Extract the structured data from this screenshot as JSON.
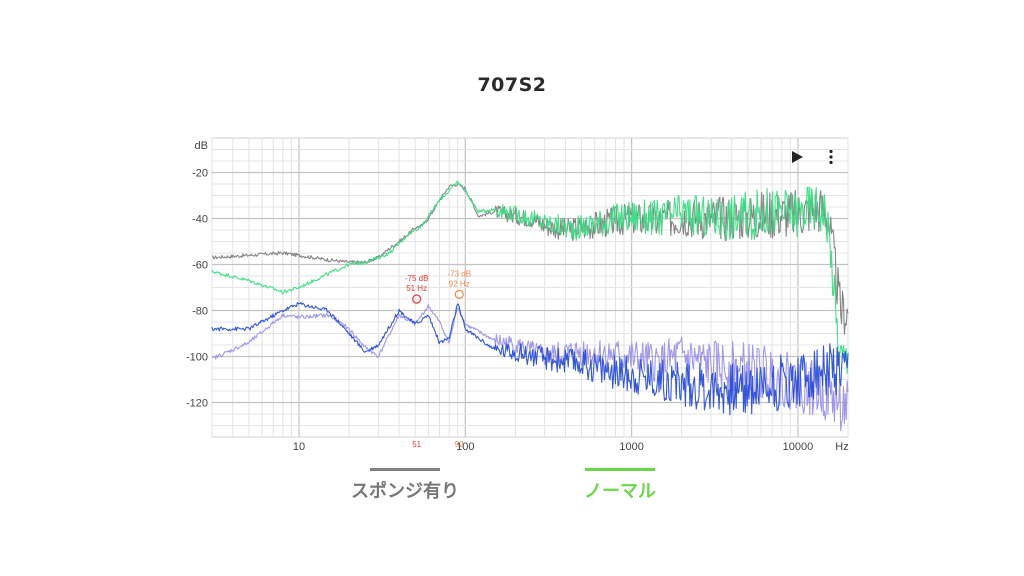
{
  "page": {
    "title": "707S2"
  },
  "chart_data": {
    "type": "line",
    "title": "707S2",
    "xscale": "log",
    "xunit": "Hz",
    "yunit": "dB",
    "xlim": [
      3,
      20000
    ],
    "ylim": [
      -135,
      -5
    ],
    "grid": true,
    "x_ticks": [
      10,
      100,
      1000,
      10000
    ],
    "x_tick_labels": [
      "10",
      "100",
      "1000",
      "10000"
    ],
    "y_ticks": [
      -20,
      -40,
      -60,
      -80,
      -100,
      -120
    ],
    "y_tick_labels": [
      "-20",
      "-40",
      "-60",
      "-80",
      "-100",
      "-120"
    ],
    "colors": {
      "sponge": "#808080",
      "normal": "#3ddc84",
      "noise_a": "#2b4fd4",
      "noise_b": "#9b93e8",
      "marker_a": "#e53935",
      "marker_b": "#ef8a4a",
      "legend_normal_text": "#6cd64a"
    },
    "legend": [
      {
        "name": "スポンジ有り",
        "color": "#808080",
        "text_color": "#777777"
      },
      {
        "name": "ノーマル",
        "color": "#6cd64a",
        "text_color": "#6cd64a"
      }
    ],
    "markers": [
      {
        "x": 51,
        "y": -75,
        "label_db": "-75 dB",
        "label_hz": "51 Hz",
        "axis_label": "51",
        "color": "#e53935"
      },
      {
        "x": 92,
        "y": -73,
        "label_db": "-73 dB",
        "label_hz": "92 Hz",
        "axis_label": "92",
        "color": "#ef8a4a"
      }
    ],
    "series": [
      {
        "key": "sponge",
        "x": [
          3,
          5,
          8,
          10,
          15,
          20,
          25,
          30,
          35,
          40,
          45,
          50,
          55,
          60,
          70,
          80,
          90,
          100,
          110,
          120,
          150,
          200,
          250,
          300,
          400,
          500,
          700,
          1000,
          1500,
          2000,
          3000,
          5000,
          7000,
          10000,
          12000,
          14000,
          15000,
          16000,
          17000,
          18000,
          20000
        ],
        "y": [
          -57,
          -56,
          -55,
          -56,
          -58,
          -59,
          -59,
          -57,
          -53,
          -50,
          -47,
          -44,
          -43,
          -40,
          -32,
          -26,
          -25,
          -27,
          -33,
          -39,
          -37,
          -39,
          -40,
          -43,
          -45,
          -44,
          -42,
          -40,
          -41,
          -39,
          -40,
          -39,
          -38,
          -38,
          -36,
          -36,
          -38,
          -51,
          -65,
          -80,
          -81
        ],
        "jitter": 0.7
      },
      {
        "key": "normal",
        "x": [
          3,
          5,
          8,
          10,
          15,
          20,
          25,
          30,
          35,
          40,
          45,
          50,
          55,
          60,
          70,
          80,
          90,
          100,
          110,
          120,
          150,
          200,
          250,
          300,
          400,
          500,
          700,
          1000,
          1500,
          2000,
          3000,
          5000,
          7000,
          10000,
          12000,
          14000,
          15000,
          16000,
          17000,
          18000,
          20000
        ],
        "y": [
          -63,
          -67,
          -72,
          -70,
          -64,
          -60,
          -59,
          -57,
          -55,
          -51,
          -47,
          -45,
          -43,
          -39,
          -32,
          -28,
          -24,
          -28,
          -33,
          -37,
          -36,
          -38,
          -40,
          -42,
          -44,
          -44,
          -41,
          -39,
          -40,
          -38,
          -40,
          -39,
          -37,
          -38,
          -35,
          -36,
          -40,
          -60,
          -85,
          -100,
          -103
        ],
        "jitter": 0.7
      },
      {
        "key": "noise_b",
        "x": [
          3,
          5,
          8,
          10,
          15,
          20,
          25,
          30,
          40,
          50,
          60,
          70,
          80,
          90,
          100,
          150,
          200,
          300,
          500,
          700,
          1000,
          1500,
          2000,
          3000,
          5000,
          7000,
          10000,
          15000,
          20000
        ],
        "y": [
          -101,
          -94,
          -82,
          -83,
          -82,
          -88,
          -96,
          -100,
          -82,
          -86,
          -78,
          -85,
          -94,
          -78,
          -86,
          -93,
          -95,
          -100,
          -98,
          -99,
          -101,
          -103,
          -100,
          -104,
          -106,
          -108,
          -112,
          -116,
          -123
        ],
        "jitter": 0.8
      },
      {
        "key": "noise_a",
        "x": [
          3,
          5,
          8,
          10,
          15,
          20,
          25,
          30,
          40,
          50,
          60,
          70,
          80,
          90,
          100,
          150,
          200,
          300,
          500,
          700,
          1000,
          1500,
          2000,
          3000,
          5000,
          7000,
          10000,
          15000,
          20000
        ],
        "y": [
          -88,
          -88,
          -80,
          -77,
          -80,
          -90,
          -98,
          -95,
          -80,
          -86,
          -82,
          -94,
          -92,
          -77,
          -88,
          -97,
          -98,
          -101,
          -103,
          -106,
          -108,
          -110,
          -112,
          -114,
          -114,
          -112,
          -110,
          -106,
          -110
        ],
        "jitter": 0.8
      }
    ]
  }
}
